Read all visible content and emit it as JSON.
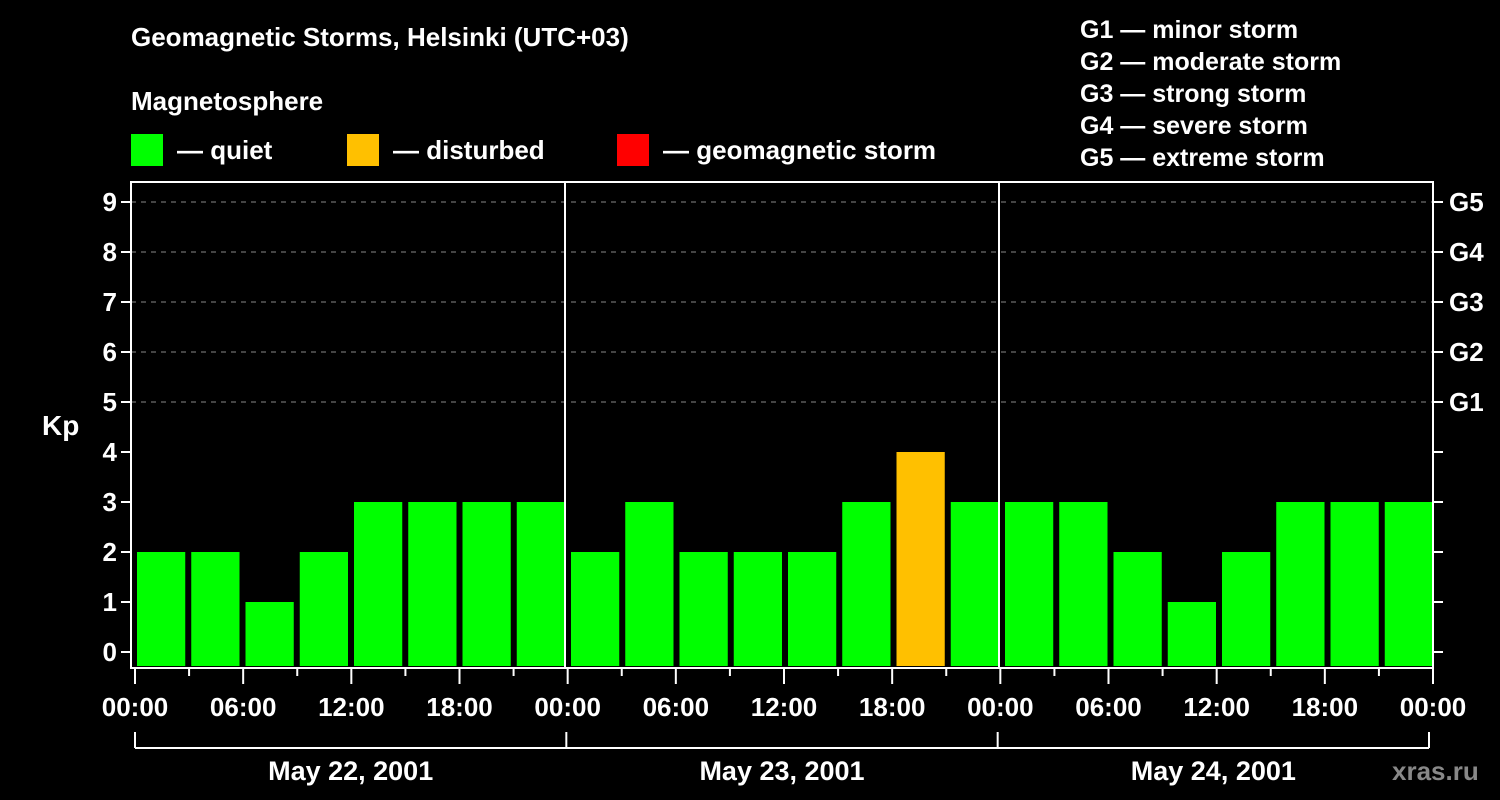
{
  "title": "Geomagnetic Storms, Helsinki (UTC+03)",
  "subtitle": "Magnetosphere",
  "legend": [
    {
      "label": "— quiet",
      "color": "#00ff00"
    },
    {
      "label": "— disturbed",
      "color": "#ffc000"
    },
    {
      "label": "— geomagnetic storm",
      "color": "#ff0000"
    }
  ],
  "g_legend": [
    "G1 — minor storm",
    "G2 — moderate storm",
    "G3 — strong storm",
    "G4 — severe storm",
    "G5 — extreme storm"
  ],
  "y_axis_label": "Kp",
  "watermark": "xras.ru",
  "chart_data": {
    "type": "bar",
    "title": "Geomagnetic Storms, Helsinki (UTC+03)",
    "xlabel": "",
    "ylabel": "Kp",
    "ylim": [
      0,
      9
    ],
    "yticks": [
      0,
      1,
      2,
      3,
      4,
      5,
      6,
      7,
      8,
      9
    ],
    "right_ticks": [
      {
        "value": 5,
        "label": "G1"
      },
      {
        "value": 6,
        "label": "G2"
      },
      {
        "value": 7,
        "label": "G3"
      },
      {
        "value": 8,
        "label": "G4"
      },
      {
        "value": 9,
        "label": "G5"
      }
    ],
    "grid": "dashed at Kp 5-9",
    "x_tick_labels": [
      "00:00",
      "06:00",
      "12:00",
      "18:00",
      "00:00",
      "06:00",
      "12:00",
      "18:00",
      "00:00",
      "06:00",
      "12:00",
      "18:00",
      "00:00"
    ],
    "dates": [
      "May 22, 2001",
      "May 23, 2001",
      "May 24, 2001"
    ],
    "categories": [
      "May 22 00-03",
      "May 22 03-06",
      "May 22 06-09",
      "May 22 09-12",
      "May 22 12-15",
      "May 22 15-18",
      "May 22 18-21",
      "May 22 21-24",
      "May 23 00-03",
      "May 23 03-06",
      "May 23 06-09",
      "May 23 09-12",
      "May 23 12-15",
      "May 23 15-18",
      "May 23 18-21",
      "May 23 21-24",
      "May 24 00-03",
      "May 24 03-06",
      "May 24 06-09",
      "May 24 09-12",
      "May 24 12-15",
      "May 24 15-18",
      "May 24 18-21",
      "May 24 21-24"
    ],
    "values": [
      2,
      2,
      1,
      2,
      3,
      3,
      3,
      3,
      2,
      3,
      2,
      2,
      2,
      3,
      4,
      3,
      3,
      3,
      2,
      1,
      2,
      3,
      3,
      3
    ],
    "status": [
      "quiet",
      "quiet",
      "quiet",
      "quiet",
      "quiet",
      "quiet",
      "quiet",
      "quiet",
      "quiet",
      "quiet",
      "quiet",
      "quiet",
      "quiet",
      "quiet",
      "disturbed",
      "quiet",
      "quiet",
      "quiet",
      "quiet",
      "quiet",
      "quiet",
      "quiet",
      "quiet",
      "quiet"
    ],
    "colors": {
      "quiet": "#00ff00",
      "disturbed": "#ffc000",
      "storm": "#ff0000"
    }
  }
}
